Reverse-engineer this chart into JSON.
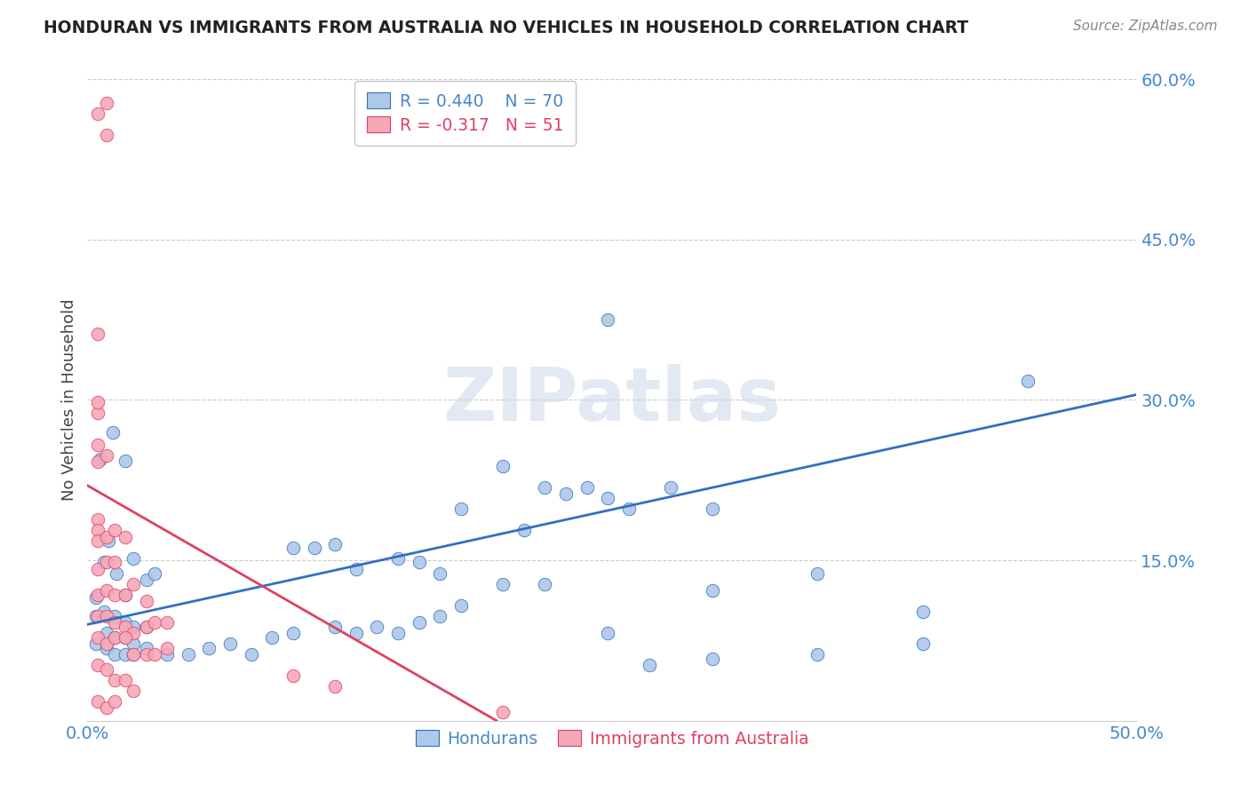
{
  "title": "HONDURAN VS IMMIGRANTS FROM AUSTRALIA NO VEHICLES IN HOUSEHOLD CORRELATION CHART",
  "source": "Source: ZipAtlas.com",
  "ylabel": "No Vehicles in Household",
  "xlim": [
    0.0,
    0.5
  ],
  "ylim": [
    0.0,
    0.6
  ],
  "yticks": [
    0.0,
    0.15,
    0.3,
    0.45,
    0.6
  ],
  "ytick_labels": [
    "",
    "15.0%",
    "30.0%",
    "45.0%",
    "60.0%"
  ],
  "xtick_labels": [
    "0.0%",
    "",
    "",
    "",
    "",
    "50.0%"
  ],
  "legend_label1": "Hondurans",
  "legend_label2": "Immigrants from Australia",
  "r1": 0.44,
  "n1": 70,
  "r2": -0.317,
  "n2": 51,
  "color_blue": "#adc8e8",
  "color_pink": "#f5a8b8",
  "color_line_blue": "#3070c0",
  "color_line_pink": "#e04060",
  "color_text_blue": "#4488cc",
  "color_text_pink": "#e04060",
  "watermark": "ZIPatlas",
  "blue_points": [
    [
      0.006,
      0.245
    ],
    [
      0.012,
      0.27
    ],
    [
      0.018,
      0.243
    ],
    [
      0.004,
      0.115
    ],
    [
      0.008,
      0.148
    ],
    [
      0.01,
      0.168
    ],
    [
      0.014,
      0.138
    ],
    [
      0.018,
      0.118
    ],
    [
      0.022,
      0.152
    ],
    [
      0.028,
      0.132
    ],
    [
      0.032,
      0.138
    ],
    [
      0.004,
      0.098
    ],
    [
      0.008,
      0.102
    ],
    [
      0.013,
      0.098
    ],
    [
      0.018,
      0.092
    ],
    [
      0.022,
      0.088
    ],
    [
      0.028,
      0.088
    ],
    [
      0.009,
      0.082
    ],
    [
      0.013,
      0.078
    ],
    [
      0.018,
      0.078
    ],
    [
      0.022,
      0.072
    ],
    [
      0.004,
      0.072
    ],
    [
      0.009,
      0.068
    ],
    [
      0.013,
      0.062
    ],
    [
      0.018,
      0.062
    ],
    [
      0.022,
      0.062
    ],
    [
      0.028,
      0.068
    ],
    [
      0.038,
      0.062
    ],
    [
      0.048,
      0.062
    ],
    [
      0.058,
      0.068
    ],
    [
      0.068,
      0.072
    ],
    [
      0.078,
      0.062
    ],
    [
      0.088,
      0.078
    ],
    [
      0.098,
      0.082
    ],
    [
      0.118,
      0.088
    ],
    [
      0.128,
      0.082
    ],
    [
      0.138,
      0.088
    ],
    [
      0.148,
      0.082
    ],
    [
      0.158,
      0.092
    ],
    [
      0.168,
      0.098
    ],
    [
      0.098,
      0.162
    ],
    [
      0.108,
      0.162
    ],
    [
      0.118,
      0.165
    ],
    [
      0.128,
      0.142
    ],
    [
      0.148,
      0.152
    ],
    [
      0.158,
      0.148
    ],
    [
      0.168,
      0.138
    ],
    [
      0.178,
      0.108
    ],
    [
      0.198,
      0.128
    ],
    [
      0.218,
      0.128
    ],
    [
      0.178,
      0.198
    ],
    [
      0.198,
      0.238
    ],
    [
      0.208,
      0.178
    ],
    [
      0.218,
      0.218
    ],
    [
      0.228,
      0.212
    ],
    [
      0.238,
      0.218
    ],
    [
      0.248,
      0.208
    ],
    [
      0.258,
      0.198
    ],
    [
      0.278,
      0.218
    ],
    [
      0.298,
      0.198
    ],
    [
      0.248,
      0.082
    ],
    [
      0.268,
      0.052
    ],
    [
      0.298,
      0.058
    ],
    [
      0.348,
      0.062
    ],
    [
      0.398,
      0.072
    ],
    [
      0.298,
      0.122
    ],
    [
      0.348,
      0.138
    ],
    [
      0.398,
      0.102
    ],
    [
      0.448,
      0.318
    ],
    [
      0.248,
      0.375
    ]
  ],
  "pink_points": [
    [
      0.005,
      0.568
    ],
    [
      0.009,
      0.578
    ],
    [
      0.009,
      0.548
    ],
    [
      0.005,
      0.362
    ],
    [
      0.005,
      0.288
    ],
    [
      0.005,
      0.298
    ],
    [
      0.005,
      0.258
    ],
    [
      0.005,
      0.242
    ],
    [
      0.009,
      0.248
    ],
    [
      0.005,
      0.188
    ],
    [
      0.005,
      0.178
    ],
    [
      0.005,
      0.168
    ],
    [
      0.009,
      0.172
    ],
    [
      0.013,
      0.178
    ],
    [
      0.018,
      0.172
    ],
    [
      0.005,
      0.142
    ],
    [
      0.009,
      0.148
    ],
    [
      0.013,
      0.148
    ],
    [
      0.005,
      0.118
    ],
    [
      0.009,
      0.122
    ],
    [
      0.013,
      0.118
    ],
    [
      0.018,
      0.118
    ],
    [
      0.022,
      0.128
    ],
    [
      0.028,
      0.112
    ],
    [
      0.005,
      0.098
    ],
    [
      0.009,
      0.098
    ],
    [
      0.013,
      0.092
    ],
    [
      0.018,
      0.088
    ],
    [
      0.022,
      0.082
    ],
    [
      0.028,
      0.088
    ],
    [
      0.032,
      0.092
    ],
    [
      0.038,
      0.092
    ],
    [
      0.005,
      0.078
    ],
    [
      0.009,
      0.072
    ],
    [
      0.013,
      0.078
    ],
    [
      0.018,
      0.078
    ],
    [
      0.022,
      0.062
    ],
    [
      0.028,
      0.062
    ],
    [
      0.032,
      0.062
    ],
    [
      0.038,
      0.068
    ],
    [
      0.005,
      0.052
    ],
    [
      0.009,
      0.048
    ],
    [
      0.013,
      0.038
    ],
    [
      0.018,
      0.038
    ],
    [
      0.022,
      0.028
    ],
    [
      0.005,
      0.018
    ],
    [
      0.009,
      0.012
    ],
    [
      0.013,
      0.018
    ],
    [
      0.098,
      0.042
    ],
    [
      0.118,
      0.032
    ],
    [
      0.198,
      0.008
    ]
  ],
  "blue_line": {
    "x0": 0.0,
    "y0": 0.09,
    "x1": 0.5,
    "y1": 0.305
  },
  "pink_line": {
    "x0": 0.0,
    "y0": 0.22,
    "x1": 0.195,
    "y1": 0.0
  }
}
